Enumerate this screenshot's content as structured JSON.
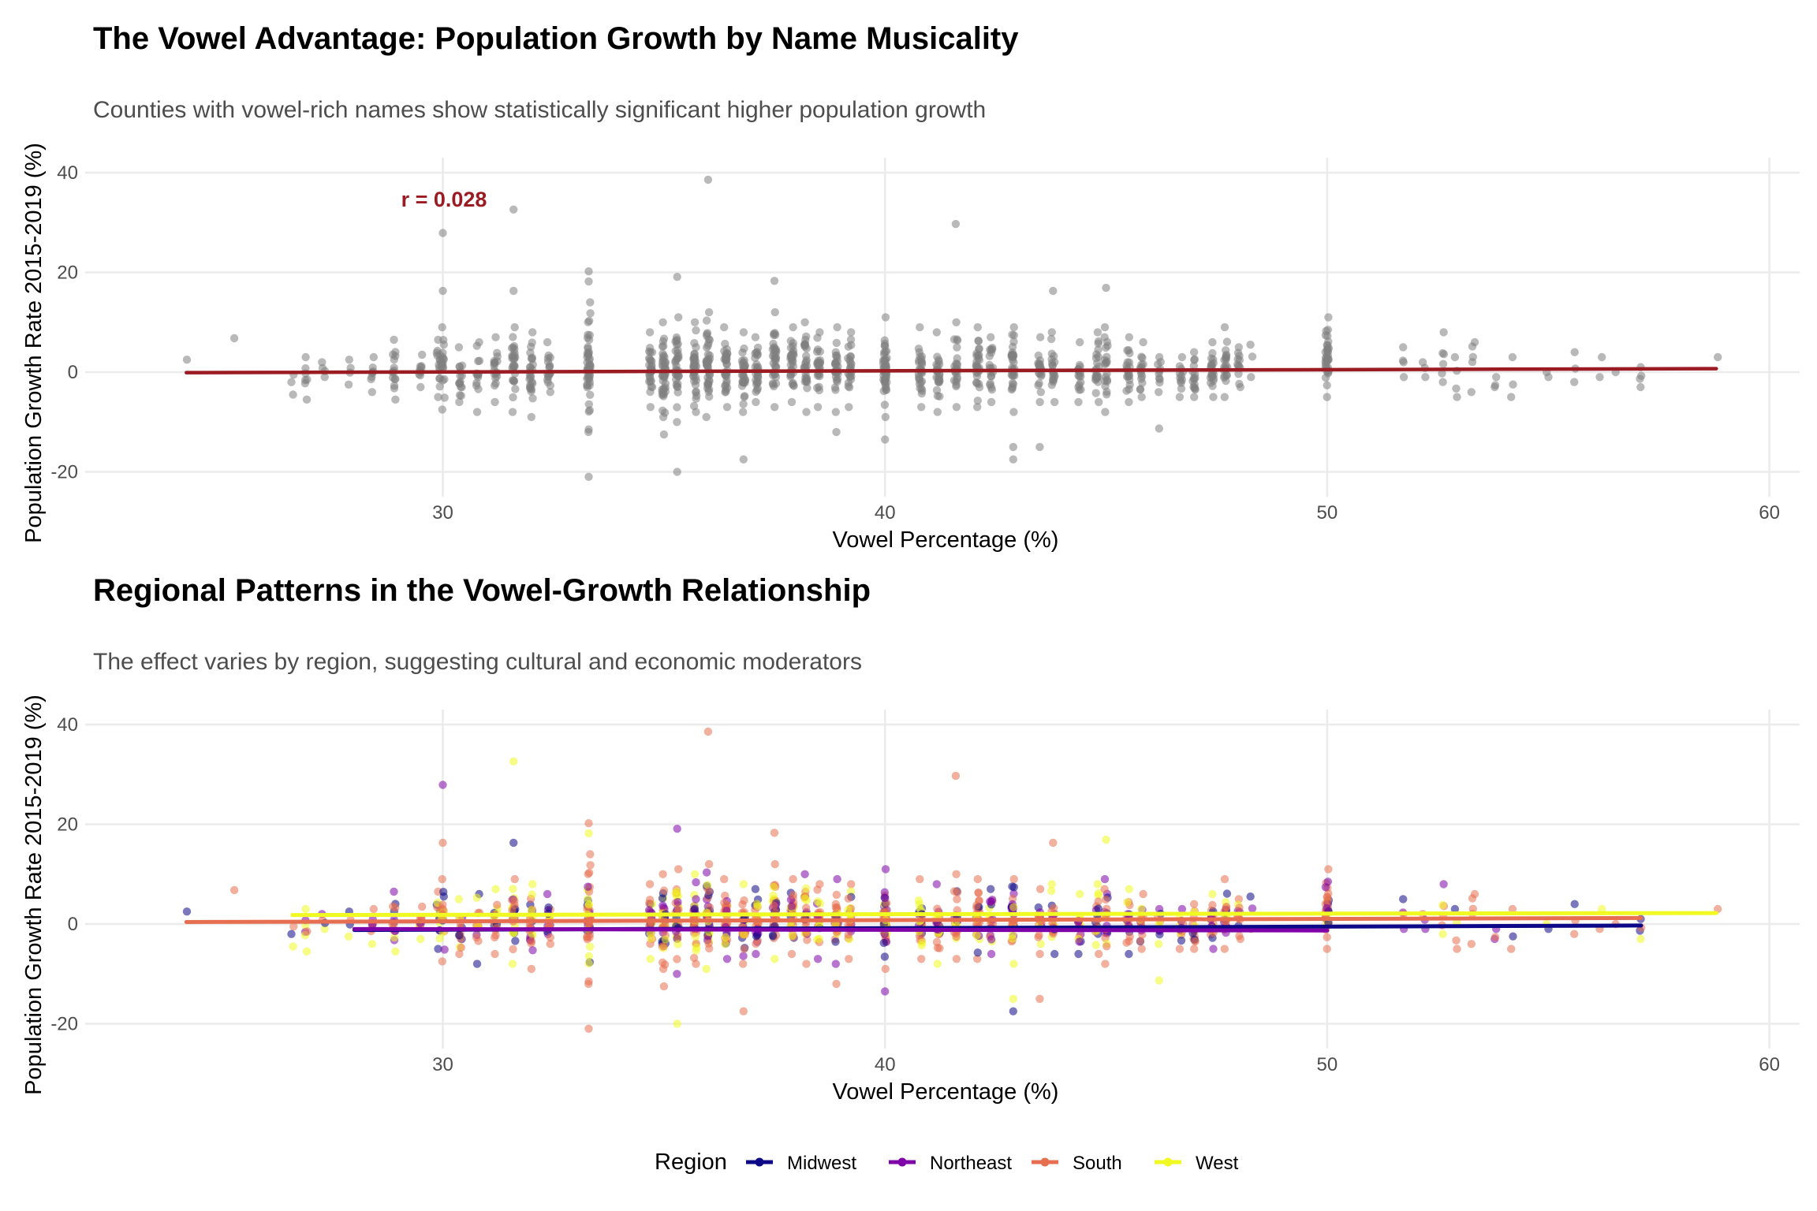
{
  "chart_data": [
    {
      "type": "scatter",
      "title": "The Vowel Advantage: Population Growth by Name Musicality",
      "subtitle": "Counties with vowel-rich names show statistically significant higher population growth",
      "xlabel": "Vowel Percentage (%)",
      "ylabel": "Population Growth Rate 2015-2019 (%)",
      "xlim": [
        23.5,
        60.6
      ],
      "ylim": [
        -23,
        42
      ],
      "x_ticks": [
        30,
        40,
        50,
        60
      ],
      "x_tick_labels": [
        "30",
        "40",
        "50",
        "60"
      ],
      "y_ticks": [
        -20,
        0,
        20,
        40
      ],
      "y_tick_labels": [
        "-20",
        "0",
        "20",
        "40"
      ],
      "annotation": {
        "text": "r = 0.028",
        "x": 31.2,
        "y": 34.5
      },
      "point_color": "#808080",
      "trend": {
        "x": [
          24.2,
          58.8
        ],
        "y": [
          -0.1,
          0.7
        ],
        "color": "#9B1B22"
      },
      "columns": [
        {
          "x": 24.2,
          "n": 1,
          "lo": 2.5,
          "hi": 2.5
        },
        {
          "x": 25.3,
          "n": 1,
          "lo": 6.8,
          "hi": 6.8
        },
        {
          "x": 26.6,
          "n": 3,
          "lo": -4.5,
          "hi": -0.5
        },
        {
          "x": 26.9,
          "n": 7,
          "lo": -5.5,
          "hi": 3
        },
        {
          "x": 27.3,
          "n": 4,
          "lo": -1,
          "hi": 2
        },
        {
          "x": 27.9,
          "n": 4,
          "lo": -2.5,
          "hi": 2.5
        },
        {
          "x": 28.4,
          "n": 8,
          "lo": -4,
          "hi": 3
        },
        {
          "x": 28.9,
          "n": 15,
          "lo": -5.5,
          "hi": 6.5
        },
        {
          "x": 29.5,
          "n": 10,
          "lo": -3,
          "hi": 3.5
        },
        {
          "x": 29.9,
          "n": 14,
          "lo": -5,
          "hi": 6.5
        },
        {
          "x": 30.0,
          "n": 18,
          "lo": -7.5,
          "hi": 9
        },
        {
          "x": 30.4,
          "n": 16,
          "lo": -6,
          "hi": 5
        },
        {
          "x": 30.8,
          "n": 14,
          "lo": -8,
          "hi": 6
        },
        {
          "x": 31.2,
          "n": 18,
          "lo": -6,
          "hi": 7
        },
        {
          "x": 31.6,
          "n": 28,
          "lo": -8,
          "hi": 9
        },
        {
          "x": 32.0,
          "n": 26,
          "lo": -9,
          "hi": 8
        },
        {
          "x": 32.4,
          "n": 18,
          "lo": -4,
          "hi": 6
        },
        {
          "x": 33.3,
          "n": 48,
          "lo": -12,
          "hi": 14
        },
        {
          "x": 34.7,
          "n": 30,
          "lo": -7,
          "hi": 8
        },
        {
          "x": 35.0,
          "n": 42,
          "lo": -9,
          "hi": 10
        },
        {
          "x": 35.3,
          "n": 34,
          "lo": -10,
          "hi": 11
        },
        {
          "x": 35.7,
          "n": 38,
          "lo": -8,
          "hi": 10
        },
        {
          "x": 36.0,
          "n": 40,
          "lo": -9,
          "hi": 12
        },
        {
          "x": 36.4,
          "n": 34,
          "lo": -7,
          "hi": 9
        },
        {
          "x": 36.8,
          "n": 30,
          "lo": -8,
          "hi": 8
        },
        {
          "x": 37.1,
          "n": 28,
          "lo": -6,
          "hi": 7
        },
        {
          "x": 37.5,
          "n": 34,
          "lo": -7,
          "hi": 12
        },
        {
          "x": 37.9,
          "n": 30,
          "lo": -6,
          "hi": 9
        },
        {
          "x": 38.2,
          "n": 28,
          "lo": -8,
          "hi": 10
        },
        {
          "x": 38.5,
          "n": 26,
          "lo": -7,
          "hi": 8
        },
        {
          "x": 38.9,
          "n": 28,
          "lo": -8,
          "hi": 9
        },
        {
          "x": 39.2,
          "n": 24,
          "lo": -7,
          "hi": 8
        },
        {
          "x": 40.0,
          "n": 48,
          "lo": -9,
          "hi": 11
        },
        {
          "x": 40.8,
          "n": 30,
          "lo": -7,
          "hi": 9
        },
        {
          "x": 41.2,
          "n": 26,
          "lo": -8,
          "hi": 8
        },
        {
          "x": 41.6,
          "n": 24,
          "lo": -7,
          "hi": 10
        },
        {
          "x": 42.1,
          "n": 28,
          "lo": -7,
          "hi": 9
        },
        {
          "x": 42.4,
          "n": 20,
          "lo": -6,
          "hi": 7
        },
        {
          "x": 42.9,
          "n": 32,
          "lo": -8,
          "hi": 9
        },
        {
          "x": 43.5,
          "n": 20,
          "lo": -6,
          "hi": 7
        },
        {
          "x": 43.8,
          "n": 20,
          "lo": -6,
          "hi": 8
        },
        {
          "x": 44.4,
          "n": 18,
          "lo": -6,
          "hi": 6
        },
        {
          "x": 44.8,
          "n": 22,
          "lo": -6,
          "hi": 8
        },
        {
          "x": 45.0,
          "n": 20,
          "lo": -8,
          "hi": 9
        },
        {
          "x": 45.5,
          "n": 20,
          "lo": -6,
          "hi": 7
        },
        {
          "x": 45.8,
          "n": 16,
          "lo": -5,
          "hi": 6
        },
        {
          "x": 46.2,
          "n": 10,
          "lo": -4,
          "hi": 3
        },
        {
          "x": 46.7,
          "n": 12,
          "lo": -5,
          "hi": 3
        },
        {
          "x": 47.0,
          "n": 16,
          "lo": -5,
          "hi": 4
        },
        {
          "x": 47.4,
          "n": 22,
          "lo": -5,
          "hi": 6
        },
        {
          "x": 47.7,
          "n": 22,
          "lo": -5,
          "hi": 9
        },
        {
          "x": 48.0,
          "n": 12,
          "lo": -3,
          "hi": 5
        },
        {
          "x": 48.3,
          "n": 3,
          "lo": -1,
          "hi": 5.5
        },
        {
          "x": 50.0,
          "n": 34,
          "lo": -5,
          "hi": 11
        },
        {
          "x": 51.7,
          "n": 4,
          "lo": -1,
          "hi": 5
        },
        {
          "x": 52.2,
          "n": 3,
          "lo": -1,
          "hi": 2
        },
        {
          "x": 52.6,
          "n": 6,
          "lo": -2,
          "hi": 8
        },
        {
          "x": 52.9,
          "n": 4,
          "lo": -5,
          "hi": 3
        },
        {
          "x": 53.3,
          "n": 5,
          "lo": -4,
          "hi": 6
        },
        {
          "x": 53.8,
          "n": 3,
          "lo": -3,
          "hi": -1
        },
        {
          "x": 54.2,
          "n": 3,
          "lo": -5,
          "hi": 3
        },
        {
          "x": 55.0,
          "n": 2,
          "lo": -1,
          "hi": 0
        },
        {
          "x": 55.6,
          "n": 3,
          "lo": -2,
          "hi": 4
        },
        {
          "x": 56.2,
          "n": 2,
          "lo": -1,
          "hi": 3
        },
        {
          "x": 56.5,
          "n": 1,
          "lo": 0,
          "hi": 0
        },
        {
          "x": 57.1,
          "n": 4,
          "lo": -3,
          "hi": 1
        },
        {
          "x": 58.8,
          "n": 1,
          "lo": 3,
          "hi": 3
        }
      ],
      "outliers": [
        {
          "x": 36.0,
          "y": 38.6
        },
        {
          "x": 31.6,
          "y": 32.6
        },
        {
          "x": 41.6,
          "y": 29.7
        },
        {
          "x": 30.0,
          "y": 27.9
        },
        {
          "x": 33.3,
          "y": 20.2
        },
        {
          "x": 33.3,
          "y": 18.2
        },
        {
          "x": 35.3,
          "y": 19.1
        },
        {
          "x": 37.5,
          "y": 18.3
        },
        {
          "x": 30.0,
          "y": 16.3
        },
        {
          "x": 31.6,
          "y": 16.3
        },
        {
          "x": 45.0,
          "y": 16.9
        },
        {
          "x": 43.8,
          "y": 16.3
        },
        {
          "x": 33.3,
          "y": -21.0
        },
        {
          "x": 35.3,
          "y": -20.0
        },
        {
          "x": 42.9,
          "y": -17.5
        },
        {
          "x": 42.9,
          "y": -15.0
        },
        {
          "x": 43.5,
          "y": -15.0
        },
        {
          "x": 36.8,
          "y": -17.5
        },
        {
          "x": 40.0,
          "y": -13.5
        },
        {
          "x": 35.0,
          "y": -12.5
        },
        {
          "x": 38.9,
          "y": -12.0
        },
        {
          "x": 33.3,
          "y": -11.5
        },
        {
          "x": 46.2,
          "y": -11.3
        }
      ]
    },
    {
      "type": "scatter",
      "title": "Regional Patterns in the Vowel-Growth Relationship",
      "subtitle": "The effect varies by region, suggesting cultural and economic moderators",
      "xlabel": "Vowel Percentage (%)",
      "ylabel": "Population Growth Rate 2015-2019 (%)",
      "xlim": [
        23.5,
        60.6
      ],
      "ylim": [
        -23,
        42
      ],
      "x_ticks": [
        30,
        40,
        50,
        60
      ],
      "x_tick_labels": [
        "30",
        "40",
        "50",
        "60"
      ],
      "y_ticks": [
        -20,
        0,
        20,
        40
      ],
      "y_tick_labels": [
        "-20",
        "0",
        "20",
        "40"
      ],
      "legend": {
        "title": "Region",
        "position": "bottom",
        "entries": [
          {
            "label": "Midwest",
            "color": "#0D0887"
          },
          {
            "label": "Northeast",
            "color": "#7E03A8"
          },
          {
            "label": "South",
            "color": "#E76F51"
          },
          {
            "label": "West",
            "color": "#F0F921"
          }
        ]
      },
      "series": [
        {
          "name": "Midwest",
          "color": "#0D0887",
          "trend": {
            "x": [
              28.0,
              57.1
            ],
            "y": [
              -1.2,
              -0.3
            ]
          }
        },
        {
          "name": "Northeast",
          "color": "#7E03A8",
          "trend": {
            "x": [
              28.0,
              50.0
            ],
            "y": [
              -1.0,
              -1.3
            ]
          }
        },
        {
          "name": "South",
          "color": "#E76F51",
          "trend": {
            "x": [
              24.2,
              57.1
            ],
            "y": [
              0.4,
              1.2
            ]
          }
        },
        {
          "name": "West",
          "color": "#F0F921",
          "trend": {
            "x": [
              26.6,
              58.8
            ],
            "y": [
              1.8,
              2.2
            ]
          }
        }
      ]
    }
  ]
}
